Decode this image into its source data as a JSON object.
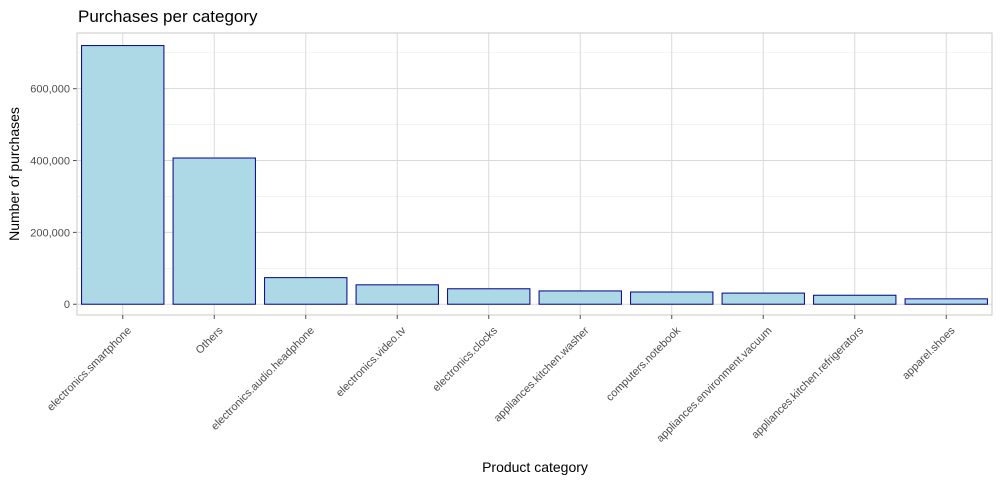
{
  "chart_data": {
    "type": "bar",
    "title": "Purchases per category",
    "xlabel": "Product category",
    "ylabel": "Number of purchases",
    "categories": [
      "electronics.smartphone",
      "Others",
      "electronics.audio.headphone",
      "electronics.video.tv",
      "electronics.clocks",
      "appliances.kitchen.washer",
      "computers.notebook",
      "appliances.environment.vacuum",
      "appliances.kitchen.refrigerators",
      "apparel.shoes"
    ],
    "values": [
      720000,
      407000,
      74000,
      54000,
      43000,
      37000,
      34000,
      31000,
      25000,
      15000
    ],
    "ylim": [
      -30000,
      755000
    ],
    "yticks": [
      0,
      200000,
      400000,
      600000
    ],
    "ytick_labels": [
      "0",
      "200,000",
      "400,000",
      "600,000"
    ],
    "grid": true,
    "colors": {
      "bar_fill": "#add8e6",
      "bar_stroke": "#00008b"
    }
  }
}
